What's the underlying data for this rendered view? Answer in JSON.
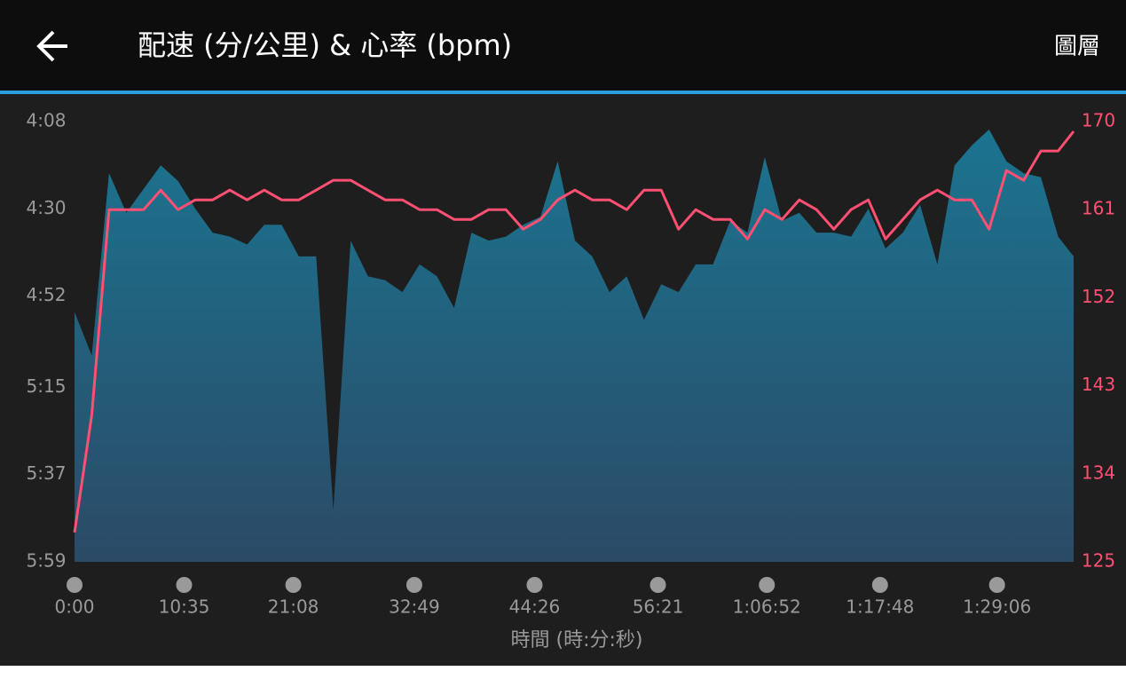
{
  "header": {
    "title": "配速 (分/公里) & 心率 (bpm)",
    "action": "圖層"
  },
  "chart_data": {
    "type": "area-line",
    "x_label": "時間 (時:分:秒)",
    "x": [
      0,
      100,
      200,
      300,
      400,
      500,
      600,
      700,
      800,
      900,
      1000,
      1100,
      1200,
      1300,
      1400,
      1500,
      1600,
      1700,
      1800,
      1900,
      2000,
      2100,
      2200,
      2300,
      2400,
      2500,
      2600,
      2700,
      2800,
      2900,
      3000,
      3100,
      3200,
      3300,
      3400,
      3500,
      3600,
      3700,
      3800,
      3900,
      4000,
      4100,
      4200,
      4300,
      4400,
      4500,
      4600,
      4700,
      4800,
      4900,
      5000,
      5100,
      5200,
      5300,
      5400,
      5500,
      5600,
      5700,
      5790
    ],
    "xlim": [
      0,
      5790
    ],
    "xticks": [
      {
        "value": 0,
        "label": "0:00"
      },
      {
        "value": 635,
        "label": "10:35"
      },
      {
        "value": 1268,
        "label": "21:08"
      },
      {
        "value": 1969,
        "label": "32:49"
      },
      {
        "value": 2666,
        "label": "44:26"
      },
      {
        "value": 3381,
        "label": "56:21"
      },
      {
        "value": 4012,
        "label": "1:06:52"
      },
      {
        "value": 4668,
        "label": "1:17:48"
      },
      {
        "value": 5346,
        "label": "1:29:06"
      }
    ],
    "ylim": [
      359,
      248
    ],
    "yticks": [
      {
        "value": 248,
        "label": "4:08"
      },
      {
        "value": 270,
        "label": "4:30"
      },
      {
        "value": 292,
        "label": "4:52"
      },
      {
        "value": 315,
        "label": "5:15"
      },
      {
        "value": 337,
        "label": "5:37"
      },
      {
        "value": 359,
        "label": "5:59"
      }
    ],
    "y2lim": [
      125,
      170
    ],
    "y2ticks": [
      125,
      134,
      143,
      152,
      161,
      170
    ],
    "series": [
      {
        "color": "#1b6a86",
        "values": [
          296,
          307,
          261,
          271,
          265,
          259,
          263,
          270,
          276,
          277,
          279,
          274,
          274,
          282,
          282,
          346,
          278,
          287,
          288,
          291,
          284,
          287,
          295,
          276,
          278,
          277,
          274,
          272,
          258,
          278,
          282,
          291,
          287,
          298,
          289,
          291,
          284,
          284,
          273,
          276,
          257,
          273,
          271,
          276,
          276,
          277,
          270,
          280,
          276,
          269,
          284,
          259,
          254,
          250,
          258,
          261,
          262,
          277,
          282
        ]
      },
      {
        "color": "#ff4f72",
        "axis": "y2",
        "values": [
          128,
          140,
          161,
          161,
          161,
          163,
          161,
          162,
          162,
          163,
          162,
          163,
          162,
          162,
          163,
          164,
          164,
          163,
          162,
          162,
          161,
          161,
          160,
          160,
          161,
          161,
          159,
          160,
          162,
          163,
          162,
          162,
          161,
          163,
          163,
          159,
          161,
          160,
          160,
          158,
          161,
          160,
          162,
          161,
          159,
          161,
          162,
          158,
          160,
          162,
          163,
          162,
          162,
          159,
          165,
          164,
          167,
          167,
          169
        ]
      }
    ]
  }
}
